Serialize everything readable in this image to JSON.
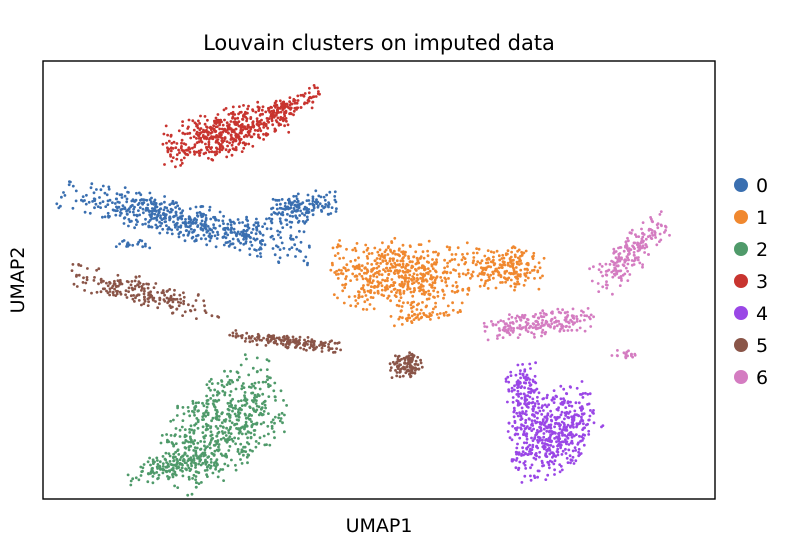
{
  "chart_data": {
    "type": "scatter",
    "title": "Louvain clusters on imputed data",
    "xlabel": "UMAP1",
    "ylabel": "UMAP2",
    "xticks": [],
    "yticks": [],
    "grid": false,
    "legend": {
      "position": "right-outside",
      "marker": "circle"
    },
    "series": [
      {
        "name": "0",
        "color": "#3a6fb0",
        "regions": [
          {
            "shape": "ellipse",
            "cx": 4.2,
            "cy": 6.35,
            "rx": 3.8,
            "ry": 0.45,
            "rot": -10,
            "n": 560
          },
          {
            "shape": "ellipse",
            "cx": 7.5,
            "cy": 6.6,
            "rx": 1.3,
            "ry": 0.35,
            "rot": 8,
            "n": 170
          },
          {
            "shape": "ellipse",
            "cx": 2.6,
            "cy": 5.85,
            "rx": 0.6,
            "ry": 0.12,
            "rot": 0,
            "n": 20
          }
        ]
      },
      {
        "name": "1",
        "color": "#f0882f",
        "regions": [
          {
            "shape": "ellipse",
            "cx": 10.6,
            "cy": 5.1,
            "rx": 2.1,
            "ry": 0.85,
            "rot": -4,
            "n": 560
          },
          {
            "shape": "ellipse",
            "cx": 13.7,
            "cy": 5.25,
            "rx": 1.2,
            "ry": 0.55,
            "rot": -4,
            "n": 220
          },
          {
            "shape": "ellipse",
            "cx": 11.2,
            "cy": 4.15,
            "rx": 1.0,
            "ry": 0.12,
            "rot": 6,
            "n": 40
          }
        ]
      },
      {
        "name": "2",
        "color": "#4f9a6a",
        "regions": [
          {
            "shape": "ellipse",
            "cx": 5.4,
            "cy": 1.7,
            "rx": 2.0,
            "ry": 1.1,
            "rot": 30,
            "n": 560
          },
          {
            "shape": "ellipse",
            "cx": 3.9,
            "cy": 0.75,
            "rx": 1.4,
            "ry": 0.3,
            "rot": 8,
            "n": 160
          }
        ]
      },
      {
        "name": "3",
        "color": "#c8342f",
        "regions": [
          {
            "shape": "ellipse",
            "cx": 5.4,
            "cy": 8.35,
            "rx": 1.9,
            "ry": 0.55,
            "rot": 12,
            "n": 460
          },
          {
            "shape": "ellipse",
            "cx": 7.3,
            "cy": 8.95,
            "rx": 1.0,
            "ry": 0.25,
            "rot": 18,
            "n": 120
          }
        ]
      },
      {
        "name": "4",
        "color": "#9a47e6",
        "regions": [
          {
            "shape": "ellipse",
            "cx": 15.2,
            "cy": 1.5,
            "rx": 1.4,
            "ry": 0.9,
            "rot": 30,
            "n": 480
          },
          {
            "shape": "ellipse",
            "cx": 14.3,
            "cy": 2.4,
            "rx": 0.55,
            "ry": 0.8,
            "rot": 0,
            "n": 140
          }
        ]
      },
      {
        "name": "5",
        "color": "#8a5548",
        "regions": [
          {
            "shape": "ellipse",
            "cx": 3.0,
            "cy": 4.7,
            "rx": 2.3,
            "ry": 0.35,
            "rot": -12,
            "n": 200
          },
          {
            "shape": "ellipse",
            "cx": 7.2,
            "cy": 3.6,
            "rx": 1.7,
            "ry": 0.15,
            "rot": -5,
            "n": 170
          },
          {
            "shape": "ellipse",
            "cx": 10.8,
            "cy": 3.05,
            "rx": 0.5,
            "ry": 0.3,
            "rot": 0,
            "n": 120
          }
        ]
      },
      {
        "name": "6",
        "color": "#d47cc1",
        "regions": [
          {
            "shape": "ellipse",
            "cx": 17.5,
            "cy": 5.6,
            "rx": 1.3,
            "ry": 0.45,
            "rot": 35,
            "n": 200
          },
          {
            "shape": "ellipse",
            "cx": 14.8,
            "cy": 4.0,
            "rx": 1.8,
            "ry": 0.3,
            "rot": 5,
            "n": 200
          },
          {
            "shape": "ellipse",
            "cx": 17.3,
            "cy": 3.3,
            "rx": 0.4,
            "ry": 0.1,
            "rot": 0,
            "n": 20
          }
        ]
      }
    ],
    "xlim": [
      0,
      20
    ],
    "ylim": [
      0,
      10
    ]
  }
}
